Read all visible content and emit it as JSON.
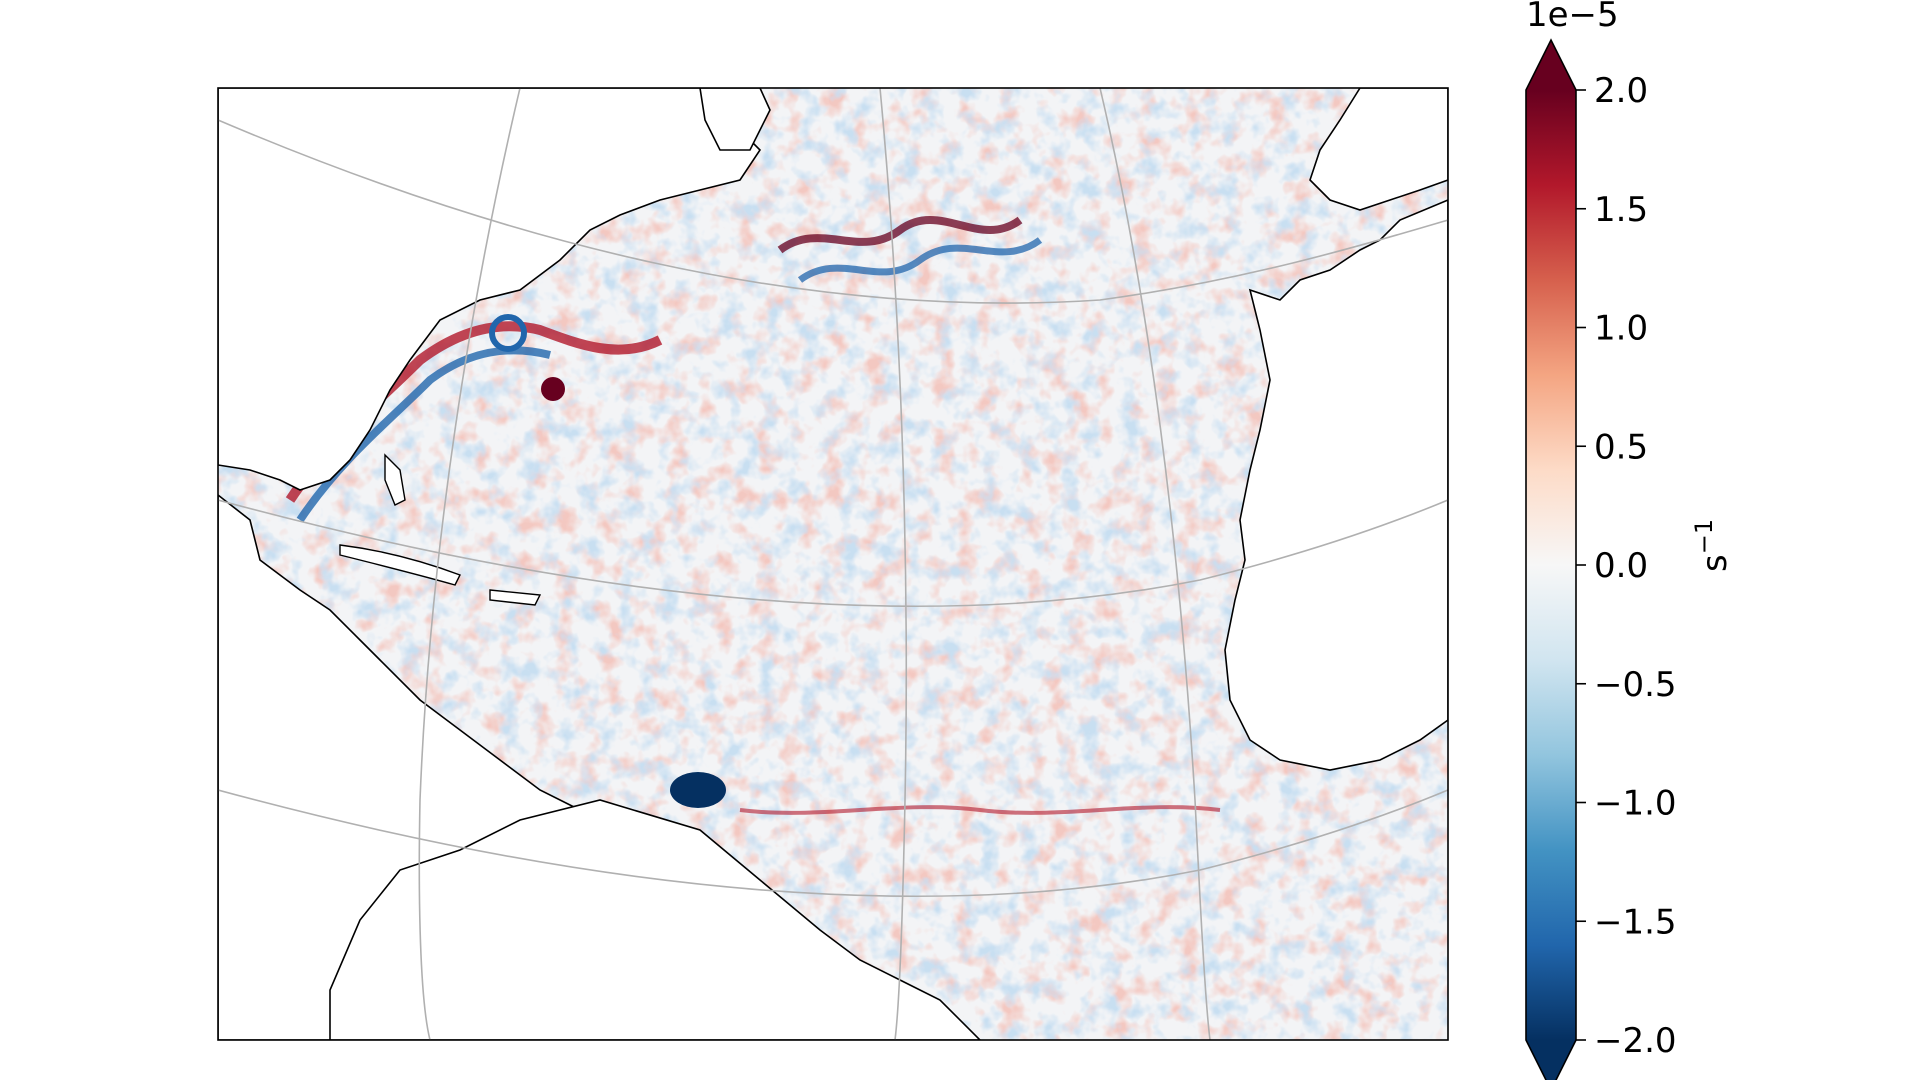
{
  "map": {
    "projection": "orthographic-like (North Atlantic)",
    "colormap": "RdBu_r",
    "gridlines": true,
    "land_color": "#ffffff",
    "coastline_color": "#000000"
  },
  "colorbar": {
    "exponent_label": "1e−5",
    "unit_label": "s",
    "unit_superscript": "−1",
    "ticks": [
      {
        "value": 2.0,
        "label": "2.0"
      },
      {
        "value": 1.5,
        "label": "1.5"
      },
      {
        "value": 1.0,
        "label": "1.0"
      },
      {
        "value": 0.5,
        "label": "0.5"
      },
      {
        "value": 0.0,
        "label": "0.0"
      },
      {
        "value": -0.5,
        "label": "−0.5"
      },
      {
        "value": -1.0,
        "label": "−1.0"
      },
      {
        "value": -1.5,
        "label": "−1.5"
      },
      {
        "value": -2.0,
        "label": "−2.0"
      }
    ],
    "range": [
      -2.0,
      2.0
    ],
    "extend": "both",
    "colors": {
      "dark_red": "#67001f",
      "red": "#b2182b",
      "orange": "#d6604d",
      "salmon": "#f4a582",
      "peach": "#fddbc7",
      "white": "#f7f7f7",
      "light_blue": "#d1e5f0",
      "sky_blue": "#92c5de",
      "blue": "#4393c3",
      "dark_blue": "#2166ac",
      "navy": "#053061"
    }
  }
}
